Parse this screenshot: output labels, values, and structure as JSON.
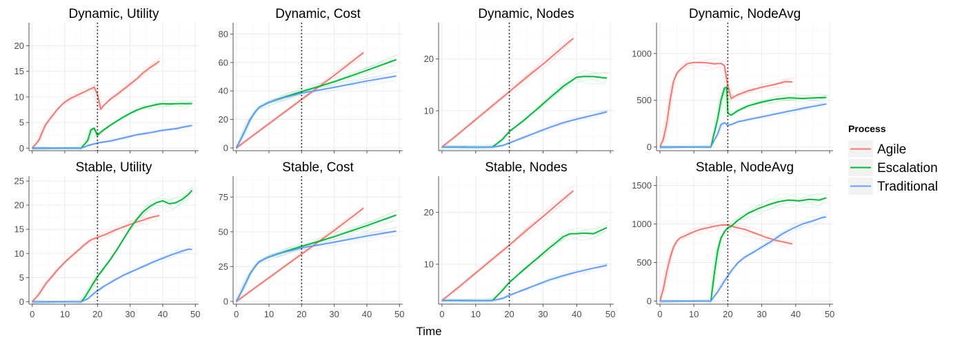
{
  "chart_data": {
    "type": "line",
    "x_axis_label": "Time",
    "x_ticks": [
      0,
      10,
      20,
      30,
      40,
      50
    ],
    "xlim": [
      -1,
      51
    ],
    "event_line_x": 20,
    "legend": {
      "title": "Process",
      "entries": [
        {
          "name": "Agile",
          "color": "#F8766D"
        },
        {
          "name": "Escalation",
          "color": "#00BA38"
        },
        {
          "name": "Traditional",
          "color": "#619CFF"
        }
      ]
    },
    "panels": [
      {
        "title": "Dynamic, Utility",
        "ylim": [
          -0.5,
          24.5
        ],
        "y_ticks": [
          0,
          5,
          10,
          15,
          20
        ],
        "series": [
          {
            "name": "Agile",
            "x": [
              0,
              2,
              4,
              6,
              8,
              10,
              12,
              14,
              16,
              18,
              19,
              20,
              21,
              22,
              24,
              26,
              28,
              30,
              32,
              34,
              36,
              38,
              39
            ],
            "y": [
              0,
              1.5,
              4.5,
              6.2,
              7.8,
              9.0,
              9.8,
              10.4,
              11.0,
              11.6,
              11.9,
              10.5,
              7.6,
              8.4,
              9.6,
              10.5,
              11.5,
              12.5,
              13.5,
              14.7,
              15.7,
              16.5,
              17.0
            ]
          },
          {
            "name": "Escalation",
            "x": [
              0,
              15,
              17,
              18,
              19,
              20,
              21,
              22,
              24,
              26,
              28,
              30,
              32,
              34,
              36,
              38,
              40,
              42,
              44,
              46,
              48,
              49
            ],
            "y": [
              0,
              0,
              1.5,
              3.6,
              3.9,
              2.5,
              3.1,
              3.6,
              4.5,
              5.3,
              6.1,
              6.8,
              7.4,
              7.9,
              8.2,
              8.5,
              8.7,
              8.6,
              8.7,
              8.7,
              8.7,
              8.7
            ]
          },
          {
            "name": "Traditional",
            "x": [
              0,
              15,
              17,
              20,
              24,
              28,
              32,
              36,
              40,
              44,
              47,
              49
            ],
            "y": [
              0,
              0,
              0.5,
              1.0,
              1.4,
              2.0,
              2.6,
              3.0,
              3.5,
              3.8,
              4.2,
              4.4
            ]
          }
        ]
      },
      {
        "title": "Dynamic, Cost",
        "ylim": [
          -2,
          88
        ],
        "y_ticks": [
          0,
          20,
          40,
          60,
          80
        ],
        "series": [
          {
            "name": "Agile",
            "x": [
              0,
              10,
              20,
              30,
              39
            ],
            "y": [
              0,
              17,
              34,
              51,
              67
            ]
          },
          {
            "name": "Escalation",
            "x": [
              0,
              2,
              4,
              6,
              7,
              10,
              15,
              20,
              25,
              30,
              40,
              49
            ],
            "y": [
              0,
              9,
              19,
              26,
              28.5,
              32,
              36,
              39.5,
              43,
              46.5,
              54.5,
              62
            ]
          },
          {
            "name": "Traditional",
            "x": [
              0,
              2,
              4,
              6,
              7,
              10,
              15,
              20,
              25,
              30,
              40,
              49
            ],
            "y": [
              0,
              9,
              19,
              26,
              28.5,
              32,
              35.5,
              38.5,
              40.5,
              42.5,
              47,
              50.5
            ]
          }
        ]
      },
      {
        "title": "Dynamic, Nodes",
        "ylim": [
          2.3,
          27
        ],
        "y_ticks": [
          10,
          20
        ],
        "series": [
          {
            "name": "Agile",
            "x": [
              0,
              5,
              10,
              15,
              20,
              25,
              30,
              35,
              39
            ],
            "y": [
              3,
              5.6,
              8.3,
              11,
              13.7,
              16.4,
              19,
              21.8,
              24
            ]
          },
          {
            "name": "Escalation",
            "x": [
              0,
              15,
              18,
              20,
              24,
              28,
              32,
              36,
              40,
              42,
              45,
              49
            ],
            "y": [
              3,
              3,
              4.5,
              6,
              8,
              10.2,
              12.5,
              14.7,
              16.5,
              16.6,
              16.6,
              16.3
            ]
          },
          {
            "name": "Traditional",
            "x": [
              0,
              15,
              18,
              20,
              24,
              28,
              32,
              36,
              40,
              44,
              49
            ],
            "y": [
              3,
              3,
              3.3,
              3.8,
              4.8,
              5.8,
              6.8,
              7.7,
              8.4,
              9.0,
              9.8
            ]
          }
        ]
      },
      {
        "title": "Dynamic, NodeAvg",
        "ylim": [
          -40,
          1330
        ],
        "y_ticks": [
          0,
          500,
          1000
        ],
        "series": [
          {
            "name": "Agile",
            "x": [
              0,
              1,
              2,
              3,
              4,
              5,
              6,
              8,
              10,
              12,
              14,
              16,
              18,
              19,
              20,
              21,
              23,
              26,
              30,
              34,
              37,
              39
            ],
            "y": [
              0,
              80,
              250,
              500,
              700,
              790,
              830,
              890,
              905,
              905,
              900,
              890,
              895,
              870,
              650,
              520,
              560,
              600,
              640,
              670,
              700,
              695
            ]
          },
          {
            "name": "Escalation",
            "x": [
              0,
              15,
              17,
              18,
              19,
              19.7,
              20,
              21,
              23,
              26,
              30,
              34,
              38,
              42,
              46,
              49
            ],
            "y": [
              0,
              0,
              300,
              500,
              630,
              640,
              360,
              340,
              390,
              440,
              480,
              510,
              525,
              520,
              525,
              530
            ]
          },
          {
            "name": "Traditional",
            "x": [
              0,
              15,
              17,
              18,
              19,
              20,
              21,
              23,
              27,
              31,
              35,
              39,
              43,
              46,
              49
            ],
            "y": [
              0,
              0,
              140,
              240,
              260,
              230,
              240,
              270,
              300,
              330,
              360,
              390,
              420,
              440,
              460
            ]
          }
        ]
      },
      {
        "title": "Stable, Utility",
        "ylim": [
          -0.5,
          26
        ],
        "y_ticks": [
          0,
          5,
          10,
          15,
          20,
          25
        ],
        "series": [
          {
            "name": "Agile",
            "x": [
              0,
              2,
              4,
              6,
              8,
              10,
              12,
              14,
              16,
              18,
              20,
              22,
              24,
              26,
              28,
              30,
              32,
              34,
              36,
              38,
              39
            ],
            "y": [
              0,
              1.5,
              3.6,
              5.2,
              6.8,
              8.2,
              9.4,
              10.6,
              11.8,
              12.8,
              13.3,
              13.8,
              14.4,
              15.0,
              15.5,
              16.0,
              16.5,
              16.9,
              17.4,
              17.7,
              17.9
            ]
          },
          {
            "name": "Escalation",
            "x": [
              0,
              15,
              16,
              18,
              20,
              22,
              24,
              26,
              28,
              30,
              32,
              34,
              36,
              38,
              40,
              42,
              44,
              46,
              48,
              49
            ],
            "y": [
              0,
              0,
              0.8,
              3.0,
              5.2,
              7.0,
              8.8,
              10.8,
              13.0,
              15.2,
              17.0,
              18.6,
              19.7,
              20.5,
              20.9,
              20.3,
              20.5,
              21.2,
              22.3,
              23.1
            ]
          },
          {
            "name": "Traditional",
            "x": [
              0,
              15,
              17,
              19,
              22,
              25,
              28,
              31,
              34,
              37,
              40,
              43,
              46,
              48,
              49
            ],
            "y": [
              0,
              0,
              0.6,
              1.8,
              3.2,
              4.4,
              5.5,
              6.4,
              7.3,
              8.2,
              9.0,
              9.8,
              10.5,
              10.9,
              10.8
            ]
          }
        ]
      },
      {
        "title": "Stable, Cost",
        "ylim": [
          -2,
          90
        ],
        "y_ticks": [
          0,
          25,
          50,
          75
        ],
        "series": [
          {
            "name": "Agile",
            "x": [
              0,
              10,
              20,
              30,
              39
            ],
            "y": [
              0,
              17,
              34,
              51,
              67
            ]
          },
          {
            "name": "Escalation",
            "x": [
              0,
              2,
              4,
              6,
              7,
              10,
              15,
              20,
              25,
              30,
              40,
              49
            ],
            "y": [
              0,
              9,
              19,
              26,
              28.5,
              32,
              36,
              39.5,
              43,
              46.5,
              54.5,
              62
            ]
          },
          {
            "name": "Traditional",
            "x": [
              0,
              2,
              4,
              6,
              7,
              10,
              15,
              20,
              25,
              30,
              40,
              49
            ],
            "y": [
              0,
              9,
              19,
              26,
              28.5,
              32,
              35.5,
              38.5,
              40.5,
              42.5,
              47,
              50.5
            ]
          }
        ]
      },
      {
        "title": "Stable, Nodes",
        "ylim": [
          2.3,
          27
        ],
        "y_ticks": [
          10,
          20
        ],
        "series": [
          {
            "name": "Agile",
            "x": [
              0,
              5,
              10,
              15,
              20,
              25,
              30,
              35,
              39
            ],
            "y": [
              3,
              5.6,
              8.3,
              11,
              13.7,
              16.5,
              19.2,
              22,
              24.2
            ]
          },
          {
            "name": "Escalation",
            "x": [
              0,
              15,
              18,
              20,
              24,
              28,
              32,
              36,
              38,
              40,
              42,
              45,
              49
            ],
            "y": [
              3,
              3,
              5,
              6.5,
              8.8,
              11,
              13.2,
              15.3,
              15.9,
              15.9,
              16.0,
              15.9,
              17.1
            ]
          },
          {
            "name": "Traditional",
            "x": [
              0,
              15,
              18,
              20,
              24,
              28,
              32,
              36,
              40,
              44,
              49
            ],
            "y": [
              3,
              3,
              3.4,
              4,
              5,
              6,
              7,
              7.8,
              8.5,
              9.1,
              9.8
            ]
          }
        ]
      },
      {
        "title": "Stable, NodeAvg",
        "ylim": [
          -40,
          1620
        ],
        "y_ticks": [
          0,
          500,
          1000,
          1500
        ],
        "series": [
          {
            "name": "Agile",
            "x": [
              0,
              1,
              2,
              3,
              4,
              5,
              6,
              8,
              10,
              12,
              14,
              16,
              18,
              20,
              22,
              25,
              28,
              31,
              34,
              37,
              39
            ],
            "y": [
              0,
              150,
              380,
              560,
              700,
              780,
              820,
              860,
              900,
              930,
              950,
              970,
              985,
              990,
              960,
              930,
              880,
              830,
              790,
              760,
              740
            ]
          },
          {
            "name": "Escalation",
            "x": [
              0,
              15,
              16,
              17,
              18,
              19,
              20,
              21,
              23,
              26,
              29,
              32,
              35,
              38,
              41,
              44,
              47,
              49
            ],
            "y": [
              0,
              0,
              350,
              650,
              820,
              900,
              950,
              970,
              1050,
              1140,
              1200,
              1250,
              1290,
              1310,
              1300,
              1320,
              1310,
              1340
            ]
          },
          {
            "name": "Traditional",
            "x": [
              0,
              15,
              17,
              19,
              21,
              23,
              25,
              27,
              30,
              33,
              36,
              39,
              42,
              45,
              48,
              49
            ],
            "y": [
              0,
              0,
              120,
              260,
              390,
              500,
              570,
              620,
              700,
              780,
              870,
              940,
              1000,
              1040,
              1085,
              1090
            ]
          }
        ]
      }
    ]
  }
}
